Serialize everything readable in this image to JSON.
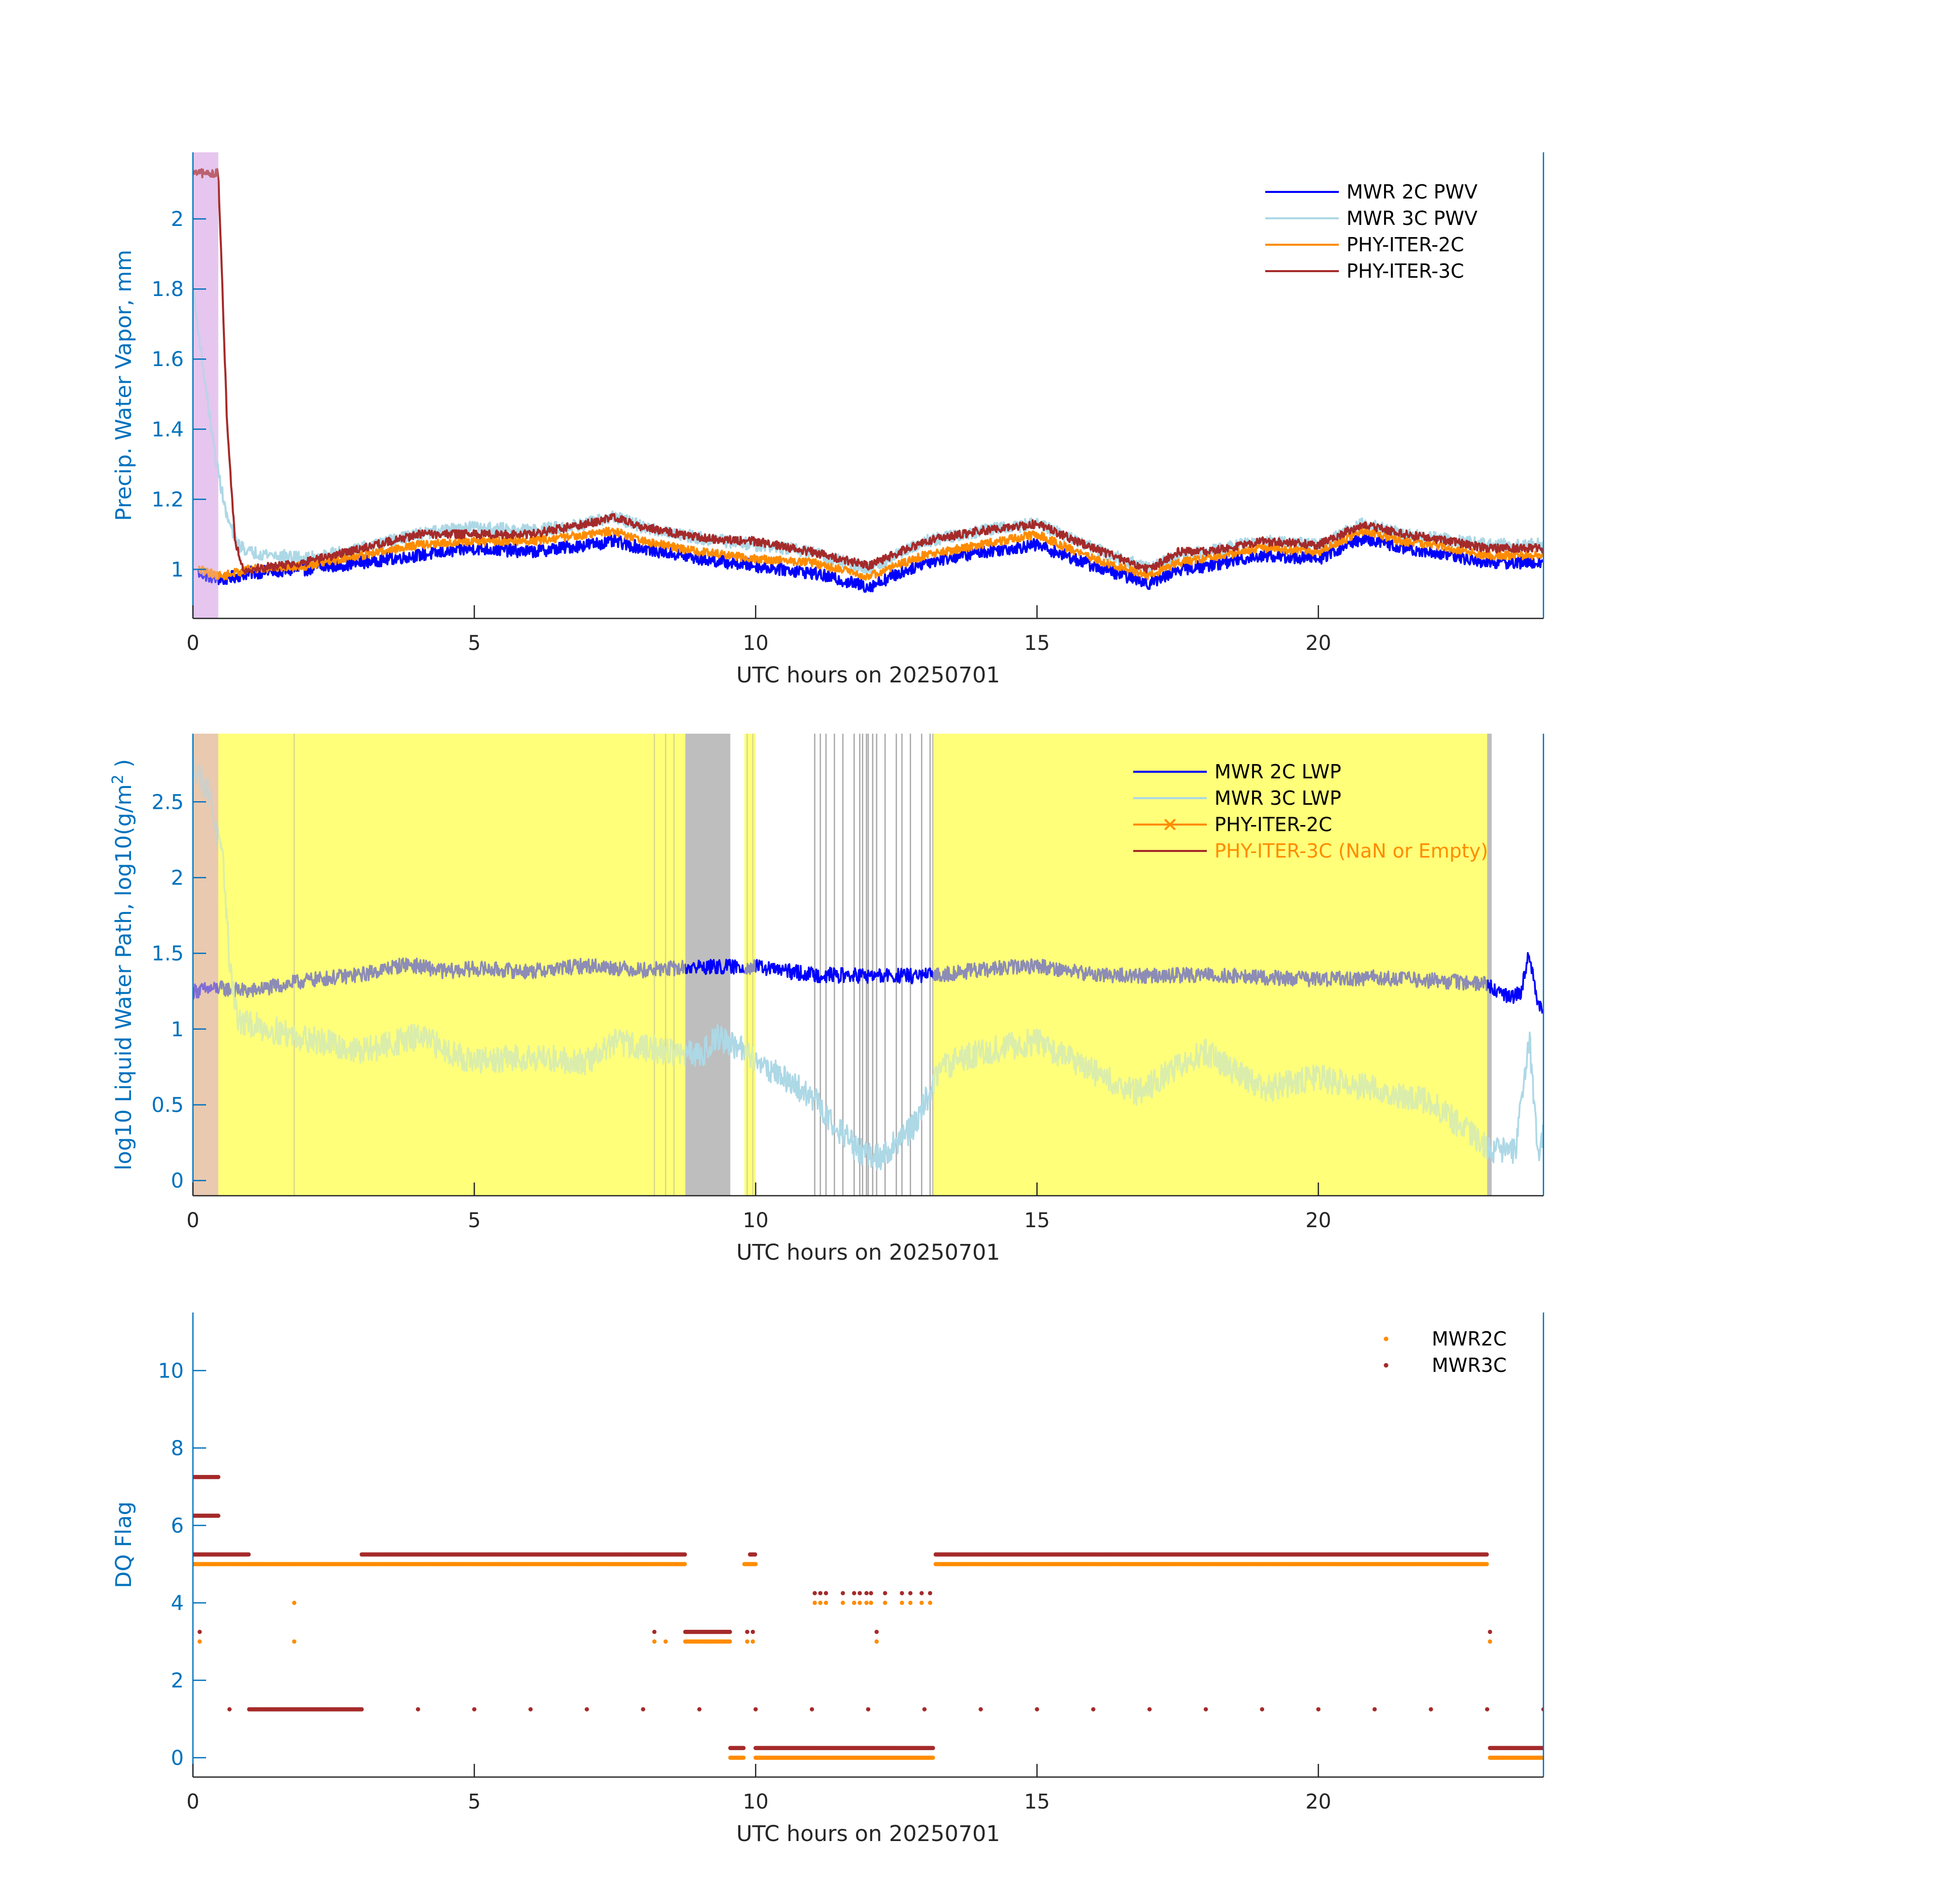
{
  "chart_data": [
    {
      "id": "pwv",
      "type": "line",
      "xlabel": "UTC hours on 20250701",
      "ylabel": "Precip. Water Vapor, mm",
      "xlim": [
        0,
        24
      ],
      "ylim": [
        0.86,
        2.19
      ],
      "xticks": [
        "0",
        "5",
        "10",
        "15",
        "20"
      ],
      "xtick_values": [
        0,
        5,
        10,
        15,
        20
      ],
      "yticks": [
        "1",
        "1.2",
        "1.4",
        "1.6",
        "1.8",
        "2"
      ],
      "ytick_values": [
        1,
        1.2,
        1.4,
        1.6,
        1.8,
        2
      ],
      "legend_position": "top-right",
      "shaded_regions": [
        {
          "x0": 0.0,
          "x1": 0.45,
          "color": "#E6C6EE"
        }
      ],
      "series": [
        {
          "name": "MWR 2C PWV",
          "color": "#0000FF",
          "noise": 0.018,
          "x": [
            0.1,
            0.5,
            1.0,
            2.0,
            3.0,
            4.0,
            5.0,
            6.0,
            7.0,
            7.5,
            8.0,
            9.0,
            10.0,
            11.0,
            12.0,
            13.0,
            14.0,
            15.0,
            16.0,
            17.0,
            17.5,
            18.0,
            19.0,
            20.0,
            20.8,
            21.5,
            22.0,
            23.0,
            24.0
          ],
          "y": [
            0.99,
            0.97,
            0.99,
            1.0,
            1.02,
            1.04,
            1.06,
            1.05,
            1.07,
            1.08,
            1.06,
            1.03,
            1.01,
            0.99,
            0.95,
            1.02,
            1.05,
            1.07,
            1.01,
            0.96,
            1.0,
            1.01,
            1.04,
            1.03,
            1.09,
            1.06,
            1.05,
            1.02,
            1.02
          ]
        },
        {
          "name": "MWR 3C PWV",
          "color": "#ADD8E6",
          "noise": 0.018,
          "x": [
            0.0,
            0.2,
            0.4,
            0.6,
            0.8,
            1.0,
            2.0,
            3.0,
            4.0,
            5.0,
            6.0,
            7.0,
            7.5,
            8.0,
            9.0,
            10.0,
            11.0,
            12.0,
            13.0,
            14.0,
            15.0,
            16.0,
            17.0,
            17.5,
            18.0,
            19.0,
            20.0,
            20.8,
            21.5,
            22.0,
            23.0,
            24.0
          ],
          "y": [
            1.8,
            1.55,
            1.32,
            1.15,
            1.07,
            1.05,
            1.03,
            1.06,
            1.1,
            1.12,
            1.11,
            1.13,
            1.15,
            1.12,
            1.09,
            1.07,
            1.05,
            1.0,
            1.08,
            1.11,
            1.13,
            1.06,
            1.0,
            1.04,
            1.05,
            1.08,
            1.07,
            1.13,
            1.1,
            1.09,
            1.07,
            1.07
          ]
        },
        {
          "name": "PHY-ITER-2C",
          "color": "#FF8C00",
          "noise": 0.012,
          "x": [
            0.1,
            0.5,
            1.0,
            2.0,
            3.0,
            4.0,
            5.0,
            6.0,
            7.0,
            7.5,
            8.0,
            9.0,
            10.0,
            11.0,
            12.0,
            13.0,
            14.0,
            15.0,
            16.0,
            17.0,
            17.5,
            18.0,
            19.0,
            20.0,
            20.8,
            21.5,
            22.0,
            23.0,
            24.0
          ],
          "y": [
            1.0,
            0.98,
            1.0,
            1.01,
            1.04,
            1.07,
            1.08,
            1.08,
            1.1,
            1.11,
            1.08,
            1.05,
            1.03,
            1.02,
            0.98,
            1.04,
            1.07,
            1.1,
            1.03,
            0.98,
            1.02,
            1.03,
            1.06,
            1.05,
            1.11,
            1.08,
            1.07,
            1.04,
            1.04
          ]
        },
        {
          "name": "PHY-ITER-3C",
          "color": "#A52A2A",
          "noise": 0.012,
          "x": [
            0.0,
            0.45,
            0.6,
            0.63,
            0.68,
            0.75,
            0.9,
            1.0,
            2.0,
            3.0,
            4.0,
            5.0,
            6.0,
            7.0,
            7.5,
            8.0,
            9.0,
            10.0,
            11.0,
            12.0,
            13.0,
            14.0,
            15.0,
            16.0,
            17.0,
            17.5,
            18.0,
            19.0,
            20.0,
            20.8,
            21.5,
            22.0,
            23.0,
            24.0
          ],
          "y": [
            2.13,
            2.13,
            1.45,
            1.36,
            1.24,
            1.08,
            1.0,
            1.0,
            1.02,
            1.06,
            1.1,
            1.1,
            1.1,
            1.13,
            1.15,
            1.12,
            1.09,
            1.08,
            1.05,
            1.01,
            1.08,
            1.11,
            1.13,
            1.06,
            1.0,
            1.05,
            1.05,
            1.08,
            1.07,
            1.13,
            1.1,
            1.09,
            1.06,
            1.06
          ]
        }
      ]
    },
    {
      "id": "lwp",
      "type": "line",
      "xlabel": "UTC hours on 20250701",
      "ylabel": "log10 Liquid Water Path, log10(g/m",
      "ylabel_sup": "2",
      "ylabel_end": " )",
      "xlim": [
        0,
        24
      ],
      "ylim": [
        -0.1,
        2.95
      ],
      "xticks": [
        "0",
        "5",
        "10",
        "15",
        "20"
      ],
      "xtick_values": [
        0,
        5,
        10,
        15,
        20
      ],
      "yticks": [
        "0",
        "0.5",
        "1",
        "1.5",
        "2",
        "2.5"
      ],
      "ytick_values": [
        0,
        0.5,
        1,
        1.5,
        2,
        2.5
      ],
      "legend_position": "top-right",
      "shaded_regions": [
        {
          "x0": 0.45,
          "x1": 8.75,
          "color": "#FFFF7A"
        },
        {
          "x0": 8.75,
          "x1": 9.55,
          "color": "#BEBEBE"
        },
        {
          "x0": 9.8,
          "x1": 10.0,
          "color": "#FFFF7A"
        },
        {
          "x0": 13.15,
          "x1": 23.0,
          "color": "#FFFF7A"
        },
        {
          "x0": 23.0,
          "x1": 23.08,
          "color": "#BEBEBE"
        },
        {
          "x0": 0.0,
          "x1": 0.45,
          "color": "#E9C9B0"
        }
      ],
      "vlines": [
        1.8,
        8.2,
        8.4,
        8.55,
        9.85,
        9.95,
        11.05,
        11.15,
        11.25,
        11.4,
        11.55,
        11.75,
        11.85,
        11.9,
        11.97,
        12.0,
        12.08,
        12.15,
        12.3,
        12.5,
        12.6,
        12.75,
        12.95,
        13.1,
        13.15
      ],
      "series": [
        {
          "name": "MWR 2C LWP",
          "color": "#0000FF",
          "noise": 0.05,
          "x": [
            0.0,
            0.45,
            1.0,
            2.0,
            3.0,
            3.8,
            4.5,
            5.0,
            6.0,
            7.0,
            8.0,
            9.0,
            10.0,
            11.0,
            12.0,
            13.0,
            14.0,
            15.0,
            16.0,
            17.0,
            18.0,
            19.0,
            20.0,
            21.0,
            22.0,
            23.0,
            23.4,
            23.6,
            23.75,
            23.9,
            24.0
          ],
          "y": [
            1.25,
            1.27,
            1.25,
            1.32,
            1.36,
            1.43,
            1.38,
            1.4,
            1.38,
            1.42,
            1.39,
            1.41,
            1.41,
            1.36,
            1.35,
            1.35,
            1.39,
            1.42,
            1.36,
            1.35,
            1.36,
            1.34,
            1.33,
            1.34,
            1.32,
            1.3,
            1.2,
            1.25,
            1.5,
            1.18,
            1.1
          ]
        },
        {
          "name": "MWR 3C LWP",
          "color": "#ADD8E6",
          "noise": 0.09,
          "x": [
            0.0,
            0.3,
            0.55,
            0.65,
            0.8,
            3.0,
            4.0,
            5.0,
            6.0,
            7.0,
            7.5,
            8.0,
            9.0,
            9.3,
            9.6,
            10.0,
            11.0,
            11.8,
            12.2,
            12.8,
            13.3,
            14.0,
            15.0,
            16.0,
            16.8,
            17.5,
            18.0,
            19.0,
            20.0,
            21.0,
            22.0,
            22.8,
            23.1,
            23.5,
            23.75,
            23.9,
            24.0
          ],
          "y": [
            2.75,
            2.55,
            2.05,
            1.45,
            1.05,
            0.85,
            0.95,
            0.78,
            0.82,
            0.78,
            0.92,
            0.88,
            0.82,
            0.95,
            0.9,
            0.8,
            0.55,
            0.2,
            0.15,
            0.35,
            0.75,
            0.85,
            0.92,
            0.72,
            0.58,
            0.75,
            0.85,
            0.6,
            0.68,
            0.6,
            0.52,
            0.28,
            0.2,
            0.18,
            0.95,
            0.15,
            0.3
          ]
        },
        {
          "name": "PHY-ITER-2C",
          "color": "#FF8C00"
        },
        {
          "name": "PHY-ITER-3C (NaN or Empty)",
          "color": "#A52A2A"
        }
      ]
    },
    {
      "id": "dq",
      "type": "scatter",
      "xlabel": "UTC hours on 20250701",
      "ylabel": "DQ Flag",
      "xlim": [
        0,
        24
      ],
      "ylim": [
        -0.5,
        11.5
      ],
      "xticks": [
        "0",
        "5",
        "10",
        "15",
        "20"
      ],
      "xtick_values": [
        0,
        5,
        10,
        15,
        20
      ],
      "yticks": [
        "0",
        "2",
        "4",
        "6",
        "8",
        "10"
      ],
      "ytick_values": [
        0,
        2,
        4,
        6,
        8,
        10
      ],
      "legend_position": "top-right",
      "series": [
        {
          "name": "MWR2C",
          "color": "#FF8C00",
          "segments": [
            [
              0.0,
              1.0,
              5.0
            ],
            [
              1.0,
              8.75,
              5.0
            ],
            [
              9.8,
              10.0,
              5.0
            ],
            [
              13.2,
              23.0,
              5.0
            ],
            [
              8.75,
              9.55,
              3.0
            ],
            [
              9.55,
              9.8,
              0.0
            ],
            [
              10.0,
              13.15,
              0.0
            ],
            [
              23.05,
              24.0,
              0.0
            ]
          ],
          "points": [
            [
              0.12,
              3.0
            ],
            [
              1.8,
              3.0
            ],
            [
              1.8,
              4.0
            ],
            [
              8.2,
              3.0
            ],
            [
              8.4,
              3.0
            ],
            [
              9.85,
              3.0
            ],
            [
              9.95,
              3.0
            ],
            [
              11.05,
              4.0
            ],
            [
              11.15,
              4.0
            ],
            [
              11.25,
              4.0
            ],
            [
              11.55,
              4.0
            ],
            [
              11.75,
              4.0
            ],
            [
              11.85,
              4.0
            ],
            [
              11.97,
              4.0
            ],
            [
              12.05,
              4.0
            ],
            [
              12.15,
              3.0
            ],
            [
              12.3,
              4.0
            ],
            [
              12.6,
              4.0
            ],
            [
              12.75,
              4.0
            ],
            [
              12.95,
              4.0
            ],
            [
              13.1,
              4.0
            ],
            [
              23.05,
              3.0
            ]
          ]
        },
        {
          "name": "MWR3C",
          "color": "#A52A2A",
          "segments": [
            [
              0.0,
              0.45,
              7.25
            ],
            [
              0.0,
              0.45,
              6.25
            ],
            [
              0.0,
              1.0,
              5.25
            ],
            [
              3.0,
              8.75,
              5.25
            ],
            [
              9.9,
              10.0,
              5.25
            ],
            [
              13.2,
              23.0,
              5.25
            ],
            [
              8.75,
              9.55,
              3.25
            ],
            [
              9.55,
              9.8,
              0.25
            ],
            [
              10.0,
              13.15,
              0.25
            ],
            [
              23.05,
              24.0,
              0.25
            ],
            [
              1.0,
              3.0,
              1.25
            ]
          ],
          "points": [
            [
              0.12,
              3.25
            ],
            [
              0.65,
              1.25
            ],
            [
              4.0,
              1.25
            ],
            [
              5.0,
              1.25
            ],
            [
              6.0,
              1.25
            ],
            [
              7.0,
              1.25
            ],
            [
              8.0,
              1.25
            ],
            [
              9.0,
              1.25
            ],
            [
              10.0,
              1.25
            ],
            [
              11.0,
              1.25
            ],
            [
              12.0,
              1.25
            ],
            [
              13.0,
              1.25
            ],
            [
              14.0,
              1.25
            ],
            [
              15.0,
              1.25
            ],
            [
              16.0,
              1.25
            ],
            [
              17.0,
              1.25
            ],
            [
              18.0,
              1.25
            ],
            [
              19.0,
              1.25
            ],
            [
              20.0,
              1.25
            ],
            [
              21.0,
              1.25
            ],
            [
              22.0,
              1.25
            ],
            [
              23.0,
              1.25
            ],
            [
              24.0,
              1.25
            ],
            [
              8.2,
              3.25
            ],
            [
              9.85,
              3.25
            ],
            [
              9.95,
              3.25
            ],
            [
              11.05,
              4.25
            ],
            [
              11.15,
              4.25
            ],
            [
              11.25,
              4.25
            ],
            [
              11.55,
              4.25
            ],
            [
              11.75,
              4.25
            ],
            [
              11.85,
              4.25
            ],
            [
              11.97,
              4.25
            ],
            [
              12.05,
              4.25
            ],
            [
              12.15,
              3.25
            ],
            [
              12.3,
              4.25
            ],
            [
              12.6,
              4.25
            ],
            [
              12.75,
              4.25
            ],
            [
              12.95,
              4.25
            ],
            [
              13.1,
              4.25
            ],
            [
              23.05,
              3.25
            ]
          ]
        }
      ]
    }
  ]
}
